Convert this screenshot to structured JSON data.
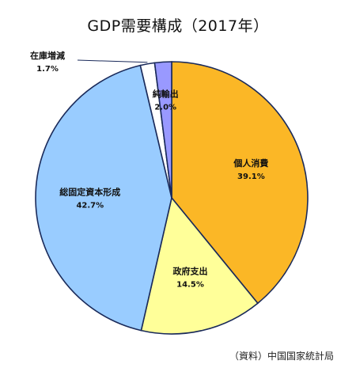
{
  "chart_data": {
    "type": "pie",
    "title": "GDP需要構成（2017年）",
    "slices": [
      {
        "label": "個人消費",
        "value": 39.1,
        "value_label": "39.1%",
        "color": "#fbb726"
      },
      {
        "label": "政府支出",
        "value": 14.5,
        "value_label": "14.5%",
        "color": "#ffff99"
      },
      {
        "label": "総固定資本形成",
        "value": 42.7,
        "value_label": "42.7%",
        "color": "#99ccff"
      },
      {
        "label": "在庫増減",
        "value": 1.7,
        "value_label": "1.7%",
        "color": "#ffffff"
      },
      {
        "label": "純輸出",
        "value": 2.0,
        "value_label": "2.0%",
        "color": "#9999ff"
      }
    ],
    "source": "（資料）中国国家統計局"
  }
}
